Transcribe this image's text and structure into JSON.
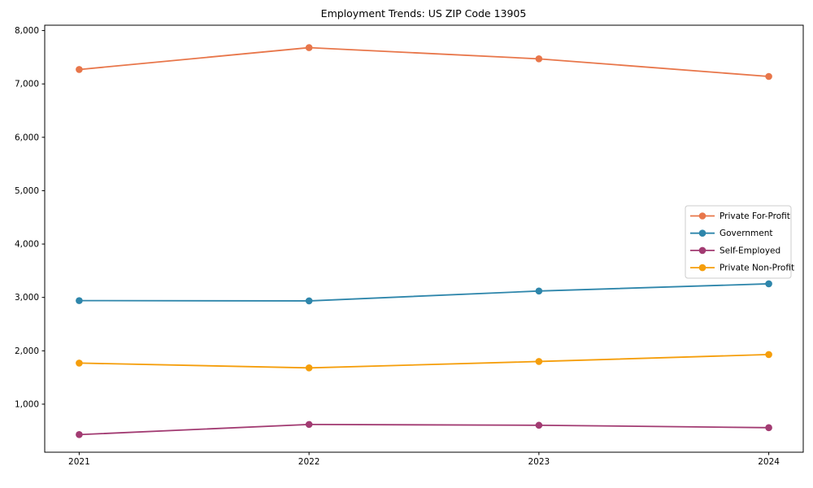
{
  "chart_data": {
    "type": "line",
    "title": "Employment Trends: US ZIP Code 13905",
    "categories": [
      "2021",
      "2022",
      "2023",
      "2024"
    ],
    "series": [
      {
        "name": "Private For-Profit",
        "color": "#E8764A",
        "values": [
          7270,
          7680,
          7470,
          7140
        ]
      },
      {
        "name": "Government",
        "color": "#2E86AB",
        "values": [
          2940,
          2935,
          3120,
          3255
        ]
      },
      {
        "name": "Self-Employed",
        "color": "#A23B72",
        "values": [
          430,
          620,
          605,
          560
        ]
      },
      {
        "name": "Private Non-Profit",
        "color": "#F59E0B",
        "values": [
          1770,
          1680,
          1800,
          1930
        ]
      }
    ],
    "xlabel": "",
    "ylabel": "",
    "ylim": [
      100,
      8100
    ],
    "yticks": [
      1000,
      2000,
      3000,
      4000,
      5000,
      6000,
      7000,
      8000
    ],
    "ytick_labels": [
      "1,000",
      "2,000",
      "3,000",
      "4,000",
      "5,000",
      "6,000",
      "7,000",
      "8,000"
    ],
    "grid": false,
    "legend_position": "center-right",
    "marker": "circle",
    "frame_color": "#000000",
    "legend_border_color": "#cccccc"
  }
}
